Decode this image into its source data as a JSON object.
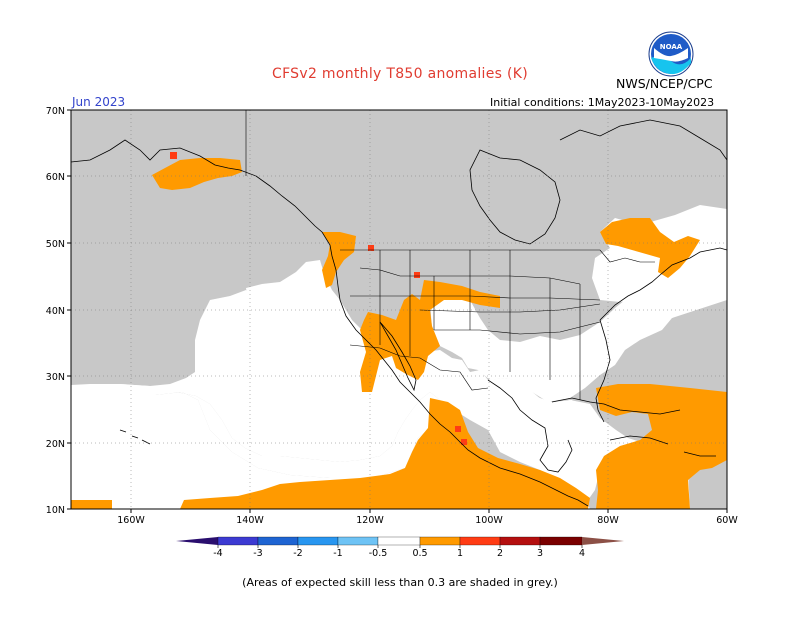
{
  "title": "CFSv2 monthly T850 anomalies (K)",
  "organization": "NWS/NCEP/CPC",
  "logo_text": "NOAA",
  "month": "Jun 2023",
  "initial_conditions": "Initial conditions: 1May2023-10May2023",
  "footnote": "(Areas of expected skill less than 0.3 are shaded in grey.)",
  "lat_labels": [
    "70N",
    "60N",
    "50N",
    "40N",
    "30N",
    "20N",
    "10N"
  ],
  "lon_labels": [
    "160W",
    "140W",
    "120W",
    "100W",
    "80W",
    "60W"
  ],
  "colorbar": {
    "labels": [
      "-4",
      "-3",
      "-2",
      "-1",
      "-0.5",
      "0.5",
      "1",
      "2",
      "3",
      "4"
    ],
    "colors": [
      "#2a0e6e",
      "#3c3ad2",
      "#1e64d2",
      "#2896f0",
      "#6ec3f5",
      "#ffffff",
      "#ff9a00",
      "#ff3c14",
      "#b40f0f",
      "#7a0000",
      "#c8a096",
      "#8c5046"
    ]
  },
  "colors": {
    "skill_grey": "#c8c8c8",
    "anomaly_0_5_to_1": "#ff9a00",
    "anomaly_1_to_2": "#ff3c14"
  }
}
